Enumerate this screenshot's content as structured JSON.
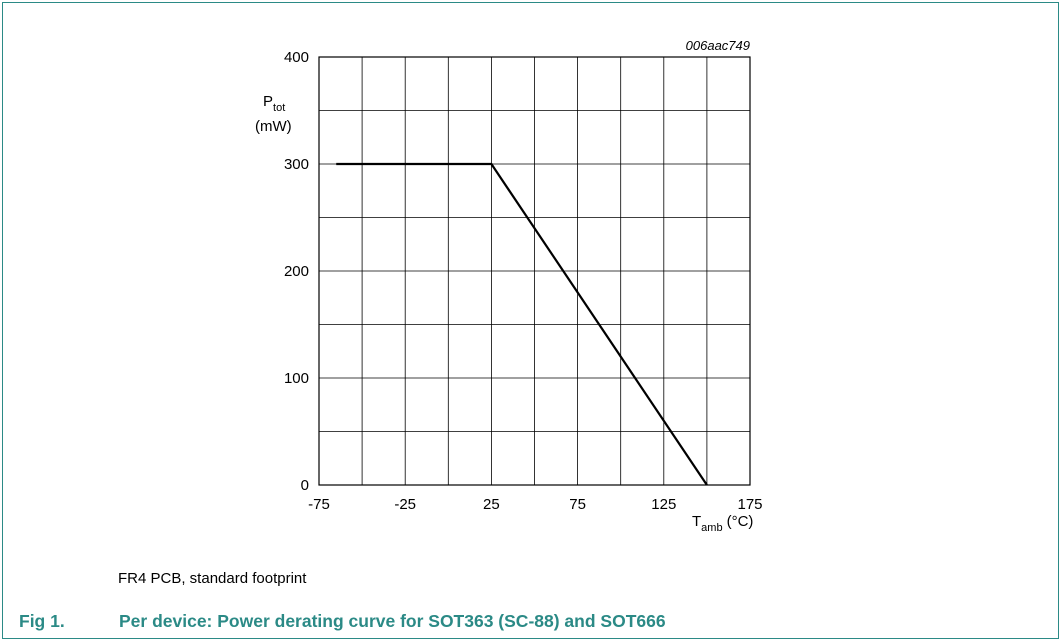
{
  "chart_data": {
    "type": "line",
    "identifier": "006aac749",
    "ylabel": {
      "main": "P",
      "sub": "tot",
      "unit": "(mW)"
    },
    "xlabel": {
      "main": "T",
      "sub": "amb",
      "unit": "(°C)"
    },
    "xlim": [
      -75,
      175
    ],
    "ylim": [
      0,
      400
    ],
    "x_ticks": [
      -75,
      -25,
      25,
      75,
      125,
      175
    ],
    "y_ticks": [
      0,
      100,
      200,
      300,
      400
    ],
    "x_grid_step": 25,
    "y_grid_step": 50,
    "grid": true,
    "series": [
      {
        "x": [
          -65,
          25,
          150
        ],
        "y": [
          300,
          300,
          0
        ]
      }
    ]
  },
  "figure": {
    "note": "FR4 PCB, standard footprint",
    "number": "Fig 1.",
    "title": "Per device: Power derating curve for SOT363 (SC-88) and SOT666"
  },
  "colors": {
    "accent": "#2b8a86",
    "line": "#000000",
    "grid": "#000000"
  }
}
